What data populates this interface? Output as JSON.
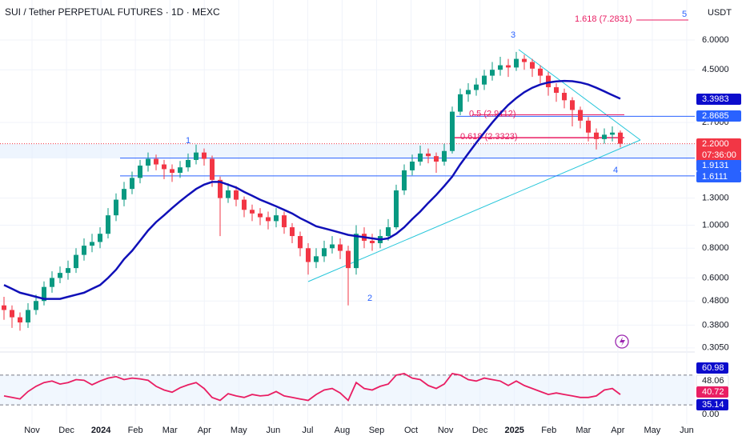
{
  "chart_data": {
    "type": "candlestick",
    "title": "SUI / Tether PERPETUAL FUTURES · 1D · MEXC",
    "currency": "USDT",
    "categories": [
      "Nov",
      "Dec",
      "2024",
      "Feb",
      "Mar",
      "Apr",
      "May",
      "Jun",
      "Jul",
      "Aug",
      "Sep",
      "Oct",
      "Nov",
      "Dec",
      "2025",
      "Feb",
      "Mar",
      "Apr",
      "May",
      "Jun"
    ],
    "open": [
      0.46,
      0.44,
      0.41,
      0.39,
      0.44,
      0.48,
      0.55,
      0.6,
      0.63,
      0.66,
      0.75,
      0.82,
      0.85,
      0.92,
      1.1,
      1.28,
      1.42,
      1.58,
      1.78,
      1.9,
      1.8,
      1.72,
      1.66,
      1.75,
      1.88,
      2.02,
      1.9,
      1.55,
      1.3,
      1.4,
      1.28,
      1.16,
      1.12,
      1.08,
      1.04,
      1.1,
      0.98,
      0.9,
      0.8,
      0.7,
      0.74,
      0.8,
      0.83,
      0.78,
      0.66,
      0.92,
      0.86,
      0.84,
      0.9,
      0.98,
      1.4,
      1.7,
      1.85,
      2.0,
      1.95,
      1.85,
      2.05,
      3.0,
      3.55,
      3.7,
      3.9,
      4.25,
      4.5,
      4.7,
      4.6,
      5.0,
      4.85,
      4.55,
      4.25,
      3.8,
      3.6,
      3.35,
      3.05,
      2.75,
      2.45,
      2.3,
      2.4,
      2.45
    ],
    "high": [
      0.5,
      0.46,
      0.43,
      0.47,
      0.51,
      0.58,
      0.64,
      0.67,
      0.71,
      0.8,
      0.88,
      0.92,
      0.98,
      1.18,
      1.36,
      1.52,
      1.68,
      1.88,
      2.02,
      1.98,
      1.88,
      1.8,
      1.86,
      2.0,
      2.18,
      2.1,
      1.96,
      1.6,
      1.5,
      1.46,
      1.32,
      1.22,
      1.18,
      1.14,
      1.18,
      1.14,
      1.02,
      0.94,
      0.84,
      0.8,
      0.86,
      0.9,
      0.88,
      0.82,
      1.0,
      0.98,
      0.92,
      0.96,
      1.06,
      1.48,
      1.8,
      1.98,
      2.16,
      2.1,
      2.02,
      2.2,
      3.15,
      3.75,
      3.95,
      4.15,
      4.5,
      4.85,
      5.1,
      5.0,
      5.35,
      5.2,
      5.0,
      4.7,
      4.4,
      3.95,
      3.75,
      3.45,
      3.15,
      2.85,
      2.55,
      2.55,
      2.6,
      2.5
    ],
    "low": [
      0.4,
      0.37,
      0.36,
      0.37,
      0.42,
      0.46,
      0.52,
      0.57,
      0.59,
      0.63,
      0.71,
      0.77,
      0.8,
      0.88,
      1.04,
      1.2,
      1.35,
      1.5,
      1.68,
      1.7,
      1.56,
      1.52,
      1.58,
      1.68,
      1.8,
      1.78,
      1.45,
      0.9,
      1.24,
      1.2,
      1.08,
      1.04,
      1.0,
      0.96,
      0.98,
      0.92,
      0.84,
      0.74,
      0.62,
      0.66,
      0.7,
      0.76,
      0.72,
      0.46,
      0.62,
      0.8,
      0.78,
      0.8,
      0.86,
      0.96,
      1.34,
      1.62,
      1.78,
      1.82,
      1.66,
      1.78,
      2.0,
      2.9,
      3.3,
      3.5,
      3.7,
      4.05,
      4.25,
      4.2,
      4.45,
      4.5,
      4.2,
      3.95,
      3.5,
      3.3,
      3.1,
      2.6,
      2.55,
      2.25,
      2.08,
      2.2,
      2.25,
      2.12
    ],
    "close": [
      0.44,
      0.41,
      0.39,
      0.44,
      0.48,
      0.55,
      0.6,
      0.63,
      0.66,
      0.75,
      0.82,
      0.85,
      0.92,
      1.1,
      1.28,
      1.42,
      1.58,
      1.78,
      1.9,
      1.8,
      1.72,
      1.66,
      1.75,
      1.88,
      2.02,
      1.9,
      1.55,
      1.3,
      1.4,
      1.28,
      1.16,
      1.12,
      1.08,
      1.04,
      1.1,
      0.98,
      0.9,
      0.8,
      0.7,
      0.74,
      0.8,
      0.83,
      0.78,
      0.66,
      0.92,
      0.86,
      0.84,
      0.9,
      0.98,
      1.4,
      1.7,
      1.85,
      2.0,
      1.95,
      1.85,
      2.05,
      3.0,
      3.55,
      3.7,
      3.9,
      4.25,
      4.5,
      4.7,
      4.6,
      5.0,
      4.85,
      4.55,
      4.25,
      3.8,
      3.6,
      3.35,
      3.05,
      2.75,
      2.45,
      2.3,
      2.4,
      2.45,
      2.2
    ],
    "up_color": "#089981",
    "down_color": "#f23645",
    "ma_values": [
      0.56,
      0.54,
      0.52,
      0.51,
      0.5,
      0.49,
      0.49,
      0.49,
      0.5,
      0.51,
      0.52,
      0.54,
      0.56,
      0.6,
      0.65,
      0.72,
      0.78,
      0.86,
      0.95,
      1.03,
      1.1,
      1.18,
      1.26,
      1.34,
      1.42,
      1.48,
      1.52,
      1.52,
      1.48,
      1.44,
      1.38,
      1.33,
      1.28,
      1.24,
      1.2,
      1.16,
      1.12,
      1.07,
      1.03,
      0.99,
      0.97,
      0.95,
      0.93,
      0.91,
      0.9,
      0.89,
      0.88,
      0.87,
      0.88,
      0.92,
      0.98,
      1.06,
      1.14,
      1.24,
      1.34,
      1.46,
      1.6,
      1.8,
      2.0,
      2.22,
      2.45,
      2.7,
      2.95,
      3.2,
      3.42,
      3.62,
      3.78,
      3.9,
      3.98,
      4.02,
      4.04,
      4.03,
      3.98,
      3.9,
      3.78,
      3.65,
      3.52,
      3.4
    ],
    "ma_color": "#1010b8",
    "log_scale": true,
    "grid": true,
    "ylim": [
      0.293,
      8.84
    ],
    "yticks": [
      {
        "value": 6,
        "label": "6.0000"
      },
      {
        "value": 4.5,
        "label": "4.5000"
      },
      {
        "value": 2.7,
        "label": "2.7000"
      },
      {
        "value": 1.3,
        "label": "1.3000"
      },
      {
        "value": 1,
        "label": "1.0000"
      },
      {
        "value": 0.8,
        "label": "0.8000"
      },
      {
        "value": 0.6,
        "label": "0.6000"
      },
      {
        "value": 0.48,
        "label": "0.4800"
      },
      {
        "value": 0.38,
        "label": "0.3800"
      },
      {
        "value": 0.305,
        "label": "0.3050"
      }
    ],
    "price_labels": [
      {
        "value": 3.3983,
        "label": "3.3983",
        "color": "#0c0ccc"
      },
      {
        "value": 2.8685,
        "label": "2.8685",
        "color": "#2962ff"
      },
      {
        "value": 2.2,
        "label": "2.2000",
        "color": "#f23645"
      },
      {
        "value": 1.9131,
        "label": "1.9131",
        "color": "#2962ff"
      },
      {
        "value": 1.6111,
        "label": "1.6111",
        "color": "#2962ff"
      }
    ],
    "countdown": "07:36:00",
    "fib_levels": [
      {
        "value": 7.2831,
        "label": "1.618 (7.2831)"
      },
      {
        "value": 2.9112,
        "label": "0.5 (2.9112)"
      },
      {
        "value": 2.3323,
        "label": "0.618 (2.3323)"
      }
    ],
    "wave_labels": [
      "1",
      "2",
      "3",
      "4",
      "5"
    ],
    "rsi": {
      "values": [
        42,
        40,
        38,
        48,
        55,
        60,
        62,
        58,
        60,
        64,
        63,
        57,
        62,
        66,
        68,
        64,
        66,
        65,
        63,
        55,
        50,
        47,
        53,
        57,
        60,
        52,
        40,
        36,
        45,
        42,
        40,
        44,
        42,
        43,
        48,
        42,
        40,
        38,
        36,
        44,
        50,
        52,
        46,
        36,
        60,
        52,
        50,
        55,
        58,
        70,
        72,
        66,
        64,
        56,
        52,
        58,
        72,
        70,
        64,
        62,
        66,
        64,
        62,
        56,
        62,
        56,
        52,
        48,
        44,
        46,
        44,
        42,
        40,
        40,
        42,
        50,
        52,
        44
      ],
      "color": "#e91e63",
      "ylim": [
        0,
        100
      ],
      "bands": [
        70,
        30
      ],
      "labels": [
        "60.98",
        "48.06",
        "40.72",
        "35.14",
        "0.00"
      ]
    }
  }
}
